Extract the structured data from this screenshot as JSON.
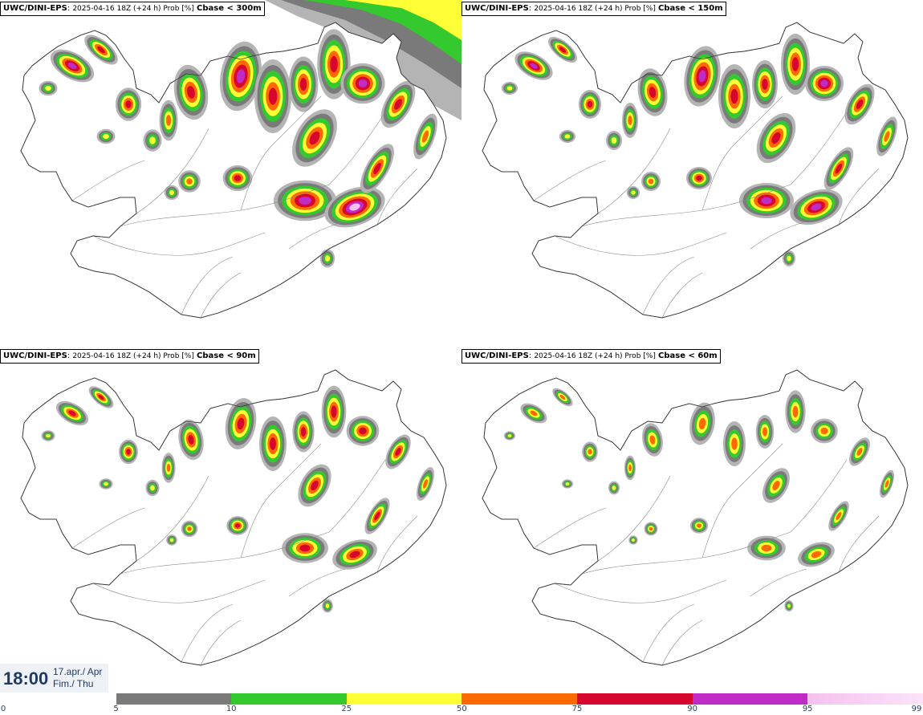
{
  "panels": [
    {
      "model": "UWC/DINI-EPS",
      "meta": "2025-04-16 18Z (+24 h) Prob [%]",
      "param": "Cbase < 300m",
      "level": 4
    },
    {
      "model": "UWC/DINI-EPS",
      "meta": "2025-04-16 18Z (+24 h) Prob [%]",
      "param": "Cbase < 150m",
      "level": 3
    },
    {
      "model": "UWC/DINI-EPS",
      "meta": "2025-04-16 18Z (+24 h) Prob [%]",
      "param": "Cbase < 90m",
      "level": 2
    },
    {
      "model": "UWC/DINI-EPS",
      "meta": "2025-04-16 18Z (+24 h) Prob [%]",
      "param": "Cbase < 60m",
      "level": 1
    }
  ],
  "time": {
    "value": "18:00",
    "line1": "17.apr./ Apr",
    "line2": "Fim./ Thu"
  },
  "colorbar": {
    "labels": [
      "0",
      "5",
      "10",
      "25",
      "50",
      "75",
      "90",
      "95",
      "99"
    ],
    "colors": [
      "#ffffff",
      "#b4b4b4",
      "#7a7a7a",
      "#34c92f",
      "#ffff36",
      "#ff6a00",
      "#d6062f",
      "#c02ac6",
      "#f6c0f0"
    ]
  }
}
